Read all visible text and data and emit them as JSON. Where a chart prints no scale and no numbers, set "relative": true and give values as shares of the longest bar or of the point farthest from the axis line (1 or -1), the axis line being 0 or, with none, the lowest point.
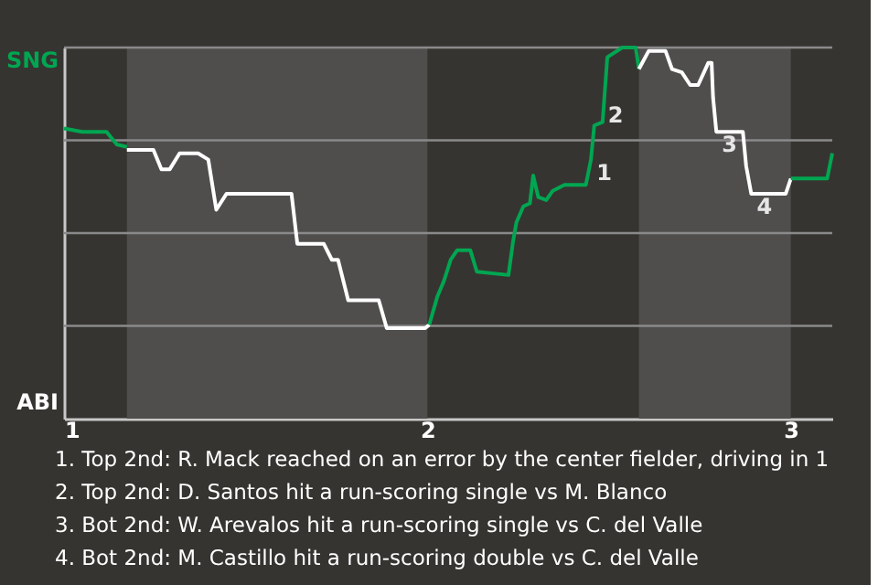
{
  "chart_data": {
    "type": "line",
    "relative": true,
    "xlim": [
      1,
      3.114
    ],
    "xticks": [
      1,
      2,
      3
    ],
    "grid": "y",
    "marker": "none",
    "line_style": "solid",
    "bands": [
      {
        "axis": "x",
        "from": 1.173,
        "to": 2.0,
        "color": "#4f4e4c"
      },
      {
        "axis": "x",
        "from": 2.582,
        "to": 3.0,
        "color": "#4f4e4c"
      }
    ],
    "series": [
      {
        "name": "SNG",
        "color": "#00a651",
        "x": [
          1,
          1.05,
          1.117,
          1.145,
          1.173
        ],
        "values": [
          0.782,
          0.773,
          0.773,
          0.739,
          0.732
        ]
      },
      {
        "name": "ABI",
        "color": "#ffffff",
        "x": [
          1.173,
          1.246,
          1.268,
          1.291,
          1.318,
          1.369,
          1.397,
          1.419,
          1.447,
          1.626,
          1.642,
          1.715,
          1.737,
          1.754,
          1.782,
          1.866,
          1.888,
          1.994,
          2.005
        ],
        "values": [
          0.724,
          0.724,
          0.672,
          0.672,
          0.715,
          0.715,
          0.698,
          0.563,
          0.606,
          0.606,
          0.471,
          0.471,
          0.428,
          0.428,
          0.319,
          0.319,
          0.244,
          0.244,
          0.253
        ]
      },
      {
        "color": "#00a651",
        "x": [
          2.005,
          2.027,
          2.045,
          2.064,
          2.082,
          2.118,
          2.136,
          2.223,
          2.236,
          2.245,
          2.264,
          2.282,
          2.291,
          2.305,
          2.327,
          2.345,
          2.377,
          2.436,
          2.45,
          2.459,
          2.482,
          2.495,
          2.536,
          2.573,
          2.582
        ],
        "values": [
          0.253,
          0.328,
          0.37,
          0.428,
          0.454,
          0.454,
          0.396,
          0.387,
          0.48,
          0.529,
          0.572,
          0.58,
          0.655,
          0.597,
          0.589,
          0.614,
          0.63,
          0.63,
          0.698,
          0.79,
          0.799,
          0.974,
          1,
          1,
          0.942
        ]
      },
      {
        "color": "#ffffff",
        "x": [
          2.582,
          2.609,
          2.655,
          2.673,
          2.7,
          2.723,
          2.745,
          2.773,
          2.782,
          2.786,
          2.795,
          2.868,
          2.877,
          2.891,
          2.986,
          3.0
        ],
        "values": [
          0.942,
          0.991,
          0.991,
          0.942,
          0.933,
          0.899,
          0.899,
          0.959,
          0.959,
          0.865,
          0.773,
          0.773,
          0.681,
          0.606,
          0.606,
          0.647
        ]
      },
      {
        "color": "#00a651",
        "x": [
          3.0,
          3.1,
          3.114
        ],
        "values": [
          0.647,
          0.647,
          0.715
        ]
      }
    ],
    "annotations": [
      {
        "text": "1",
        "x": 2.45,
        "y": 0.698
      },
      {
        "text": "2",
        "x": 2.482,
        "y": 0.853
      },
      {
        "text": "3",
        "x": 2.795,
        "y": 0.773
      },
      {
        "text": "4",
        "x": 2.891,
        "y": 0.606
      },
      "1. Top 2nd: R. Mack reached on an error by the center fielder, driving in 1",
      "2. Top 2nd: D. Santos hit a run-scoring single vs M. Blanco",
      "3. Bot 2nd: W. Arevalos hit a run-scoring single vs C. del Valle",
      "4. Bot 2nd: M. Castillo hit a run-scoring double vs C. del Valle"
    ]
  }
}
